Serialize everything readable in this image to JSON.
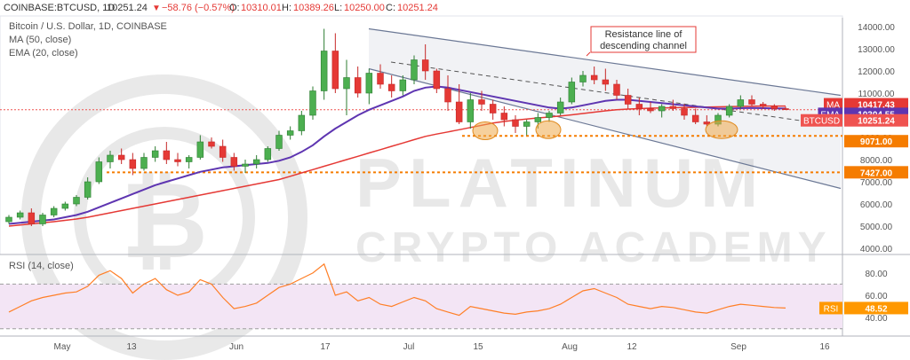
{
  "header": {
    "symbol": "COINBASE:BTCUSD, 1D",
    "last": "10251.24",
    "change": "−58.76 (−0.57%)",
    "o_label": "O:",
    "o_value": "10310.01",
    "h_label": "H:",
    "h_value": "10389.26",
    "l_label": "L:",
    "l_value": "10250.00",
    "c_label": "C:",
    "c_value": "10251.24"
  },
  "legend": {
    "title": "Bitcoin / U.S. Dollar, 1D, COINBASE",
    "ma": "MA (50, close)",
    "ema": "EMA (20, close)"
  },
  "watermark": {
    "line1": "PLATINUM",
    "line2": "CRYPTO ACADEMY"
  },
  "annotation": {
    "line1": "Resistance line of",
    "line2": "descending channel"
  },
  "price_axis": {
    "ticks": [
      "4000.00",
      "5000.00",
      "6000.00",
      "7000.00",
      "8000.00",
      "9000.00",
      "10000.00",
      "11000.00",
      "12000.00",
      "13000.00",
      "14000.00"
    ],
    "badges": [
      {
        "name": "ma-badge",
        "label": "MA",
        "value": "10417.43",
        "color": "#e53935"
      },
      {
        "name": "ema-badge",
        "label": "EMA",
        "value": "10304.55",
        "color": "#5e35b1"
      },
      {
        "name": "btcusd-badge",
        "label": "BTCUSD",
        "value": "10251.24",
        "color": "#ef5350"
      },
      {
        "name": "level-9071-badge",
        "label": "",
        "value": "9071.00",
        "color": "#f57c00"
      },
      {
        "name": "level-7427-badge",
        "label": "",
        "value": "7427.00",
        "color": "#f57c00"
      }
    ]
  },
  "rsi": {
    "title": "RSI (14, close)",
    "ticks": [
      "40.00",
      "60.00",
      "80.00"
    ],
    "badge_label": "RSI",
    "badge_value": "48.52",
    "line_color": "#ff7f27",
    "band_color": "#f3e5f5"
  },
  "time_axis": {
    "labels": [
      "May",
      "13",
      "Jun",
      "17",
      "Jul",
      "15",
      "Aug",
      "12",
      "Sep",
      "16"
    ]
  },
  "chart_data": {
    "type": "candlestick",
    "title": "Bitcoin / U.S. Dollar, 1D, COINBASE",
    "ylim": [
      3800,
      14400
    ],
    "rsi_ylim": [
      25,
      95
    ],
    "horizontal_levels": [
      9071,
      7427
    ],
    "last_price": 10251.24,
    "ma50_last": 10417.43,
    "ema20_last": 10304.55,
    "rsi_last": 48.52,
    "resistance_line": {
      "start": 13900,
      "end": 10900
    },
    "support_line": {
      "start": 12100,
      "end": 6700
    },
    "dashed_trendline": {
      "start": 12400,
      "end": 9500
    },
    "candles": [
      {
        "o": 5200,
        "h": 5500,
        "l": 5100,
        "c": 5400
      },
      {
        "o": 5400,
        "h": 5700,
        "l": 5300,
        "c": 5600
      },
      {
        "o": 5600,
        "h": 5800,
        "l": 5000,
        "c": 5100
      },
      {
        "o": 5100,
        "h": 5600,
        "l": 5000,
        "c": 5500
      },
      {
        "o": 5500,
        "h": 5900,
        "l": 5400,
        "c": 5800
      },
      {
        "o": 5800,
        "h": 6100,
        "l": 5700,
        "c": 6000
      },
      {
        "o": 6000,
        "h": 6400,
        "l": 5900,
        "c": 6300
      },
      {
        "o": 6300,
        "h": 7200,
        "l": 6200,
        "c": 7000
      },
      {
        "o": 7000,
        "h": 8100,
        "l": 6900,
        "c": 7900
      },
      {
        "o": 7900,
        "h": 8400,
        "l": 7600,
        "c": 8200
      },
      {
        "o": 8200,
        "h": 8500,
        "l": 7800,
        "c": 8000
      },
      {
        "o": 8000,
        "h": 8300,
        "l": 7300,
        "c": 7600
      },
      {
        "o": 7600,
        "h": 8300,
        "l": 7500,
        "c": 8100
      },
      {
        "o": 8100,
        "h": 8600,
        "l": 7900,
        "c": 8400
      },
      {
        "o": 8400,
        "h": 8800,
        "l": 7800,
        "c": 8000
      },
      {
        "o": 8000,
        "h": 8300,
        "l": 7700,
        "c": 7900
      },
      {
        "o": 7900,
        "h": 8200,
        "l": 7600,
        "c": 8100
      },
      {
        "o": 8100,
        "h": 9100,
        "l": 8000,
        "c": 8800
      },
      {
        "o": 8800,
        "h": 9000,
        "l": 8500,
        "c": 8600
      },
      {
        "o": 8600,
        "h": 8900,
        "l": 7900,
        "c": 8100
      },
      {
        "o": 8100,
        "h": 8300,
        "l": 7500,
        "c": 7700
      },
      {
        "o": 7700,
        "h": 8000,
        "l": 7400,
        "c": 7800
      },
      {
        "o": 7800,
        "h": 8200,
        "l": 7600,
        "c": 8000
      },
      {
        "o": 8000,
        "h": 8600,
        "l": 7900,
        "c": 8500
      },
      {
        "o": 8500,
        "h": 9300,
        "l": 8400,
        "c": 9100
      },
      {
        "o": 9100,
        "h": 9500,
        "l": 8900,
        "c": 9300
      },
      {
        "o": 9300,
        "h": 10200,
        "l": 9100,
        "c": 10000
      },
      {
        "o": 10000,
        "h": 11300,
        "l": 9800,
        "c": 11100
      },
      {
        "o": 11100,
        "h": 13900,
        "l": 10700,
        "c": 12900
      },
      {
        "o": 12900,
        "h": 13700,
        "l": 11000,
        "c": 11200
      },
      {
        "o": 11200,
        "h": 12500,
        "l": 10000,
        "c": 11700
      },
      {
        "o": 11700,
        "h": 12200,
        "l": 10800,
        "c": 11000
      },
      {
        "o": 11000,
        "h": 12100,
        "l": 10500,
        "c": 11900
      },
      {
        "o": 11900,
        "h": 12300,
        "l": 11200,
        "c": 11400
      },
      {
        "o": 11400,
        "h": 11800,
        "l": 10800,
        "c": 11100
      },
      {
        "o": 11100,
        "h": 11800,
        "l": 10900,
        "c": 11600
      },
      {
        "o": 11600,
        "h": 12700,
        "l": 11400,
        "c": 12500
      },
      {
        "o": 12500,
        "h": 13200,
        "l": 11600,
        "c": 12000
      },
      {
        "o": 12000,
        "h": 12100,
        "l": 11000,
        "c": 11200
      },
      {
        "o": 11200,
        "h": 11800,
        "l": 10200,
        "c": 10600
      },
      {
        "o": 10600,
        "h": 11400,
        "l": 9600,
        "c": 9700
      },
      {
        "o": 9700,
        "h": 11000,
        "l": 9400,
        "c": 10700
      },
      {
        "o": 10700,
        "h": 11100,
        "l": 10200,
        "c": 10500
      },
      {
        "o": 10500,
        "h": 10700,
        "l": 9800,
        "c": 10100
      },
      {
        "o": 10100,
        "h": 10400,
        "l": 9500,
        "c": 9800
      },
      {
        "o": 9800,
        "h": 10000,
        "l": 9200,
        "c": 9500
      },
      {
        "o": 9500,
        "h": 9800,
        "l": 9100,
        "c": 9700
      },
      {
        "o": 9700,
        "h": 10100,
        "l": 9400,
        "c": 9900
      },
      {
        "o": 9900,
        "h": 10200,
        "l": 9700,
        "c": 10100
      },
      {
        "o": 10100,
        "h": 10800,
        "l": 10000,
        "c": 10600
      },
      {
        "o": 10600,
        "h": 11700,
        "l": 10500,
        "c": 11500
      },
      {
        "o": 11500,
        "h": 12000,
        "l": 11300,
        "c": 11800
      },
      {
        "o": 11800,
        "h": 12200,
        "l": 11400,
        "c": 11600
      },
      {
        "o": 11600,
        "h": 12100,
        "l": 11100,
        "c": 11400
      },
      {
        "o": 11400,
        "h": 11600,
        "l": 10700,
        "c": 10900
      },
      {
        "o": 10900,
        "h": 11200,
        "l": 10300,
        "c": 10500
      },
      {
        "o": 10500,
        "h": 10800,
        "l": 10000,
        "c": 10300
      },
      {
        "o": 10300,
        "h": 10600,
        "l": 10100,
        "c": 10200
      },
      {
        "o": 10200,
        "h": 10500,
        "l": 9900,
        "c": 10400
      },
      {
        "o": 10400,
        "h": 10700,
        "l": 10200,
        "c": 10300
      },
      {
        "o": 10300,
        "h": 10500,
        "l": 9800,
        "c": 10000
      },
      {
        "o": 10000,
        "h": 10300,
        "l": 9600,
        "c": 9700
      },
      {
        "o": 9700,
        "h": 10000,
        "l": 9500,
        "c": 9600
      },
      {
        "o": 9600,
        "h": 10100,
        "l": 9500,
        "c": 10000
      },
      {
        "o": 10000,
        "h": 10500,
        "l": 9900,
        "c": 10400
      },
      {
        "o": 10400,
        "h": 10900,
        "l": 10300,
        "c": 10700
      },
      {
        "o": 10700,
        "h": 10900,
        "l": 10400,
        "c": 10500
      },
      {
        "o": 10500,
        "h": 10600,
        "l": 10300,
        "c": 10400
      },
      {
        "o": 10400,
        "h": 10500,
        "l": 10200,
        "c": 10300
      },
      {
        "o": 10300,
        "h": 10390,
        "l": 10250,
        "c": 10251
      }
    ],
    "ma50": [
      5000,
      5050,
      5100,
      5150,
      5200,
      5260,
      5320,
      5400,
      5500,
      5600,
      5700,
      5800,
      5900,
      6000,
      6100,
      6200,
      6300,
      6400,
      6500,
      6600,
      6700,
      6800,
      6900,
      7000,
      7100,
      7250,
      7400,
      7550,
      7700,
      7850,
      8000,
      8150,
      8300,
      8450,
      8600,
      8750,
      8900,
      9050,
      9150,
      9250,
      9350,
      9450,
      9550,
      9650,
      9720,
      9780,
      9830,
      9880,
      9920,
      9970,
      10020,
      10080,
      10140,
      10200,
      10250,
      10280,
      10300,
      10320,
      10330,
      10340,
      10350,
      10360,
      10370,
      10380,
      10390,
      10400,
      10410,
      10415,
      10416,
      10417
    ],
    "ema20": [
      5100,
      5150,
      5200,
      5250,
      5300,
      5400,
      5500,
      5650,
      5850,
      6050,
      6250,
      6450,
      6650,
      6850,
      7000,
      7150,
      7300,
      7450,
      7550,
      7650,
      7700,
      7750,
      7800,
      7850,
      7950,
      8100,
      8350,
      8650,
      9050,
      9400,
      9700,
      10000,
      10250,
      10450,
      10650,
      10850,
      11100,
      11250,
      11300,
      11250,
      11150,
      11050,
      10950,
      10850,
      10750,
      10650,
      10550,
      10450,
      10350,
      10300,
      10350,
      10450,
      10550,
      10650,
      10700,
      10700,
      10650,
      10600,
      10550,
      10500,
      10450,
      10400,
      10350,
      10300,
      10300,
      10320,
      10330,
      10320,
      10310,
      10305
    ],
    "rsi": [
      45,
      50,
      55,
      58,
      60,
      62,
      63,
      68,
      78,
      82,
      75,
      62,
      70,
      75,
      65,
      60,
      63,
      74,
      70,
      58,
      48,
      50,
      53,
      60,
      67,
      70,
      75,
      80,
      88,
      60,
      63,
      55,
      58,
      52,
      50,
      54,
      58,
      55,
      48,
      45,
      42,
      50,
      48,
      46,
      44,
      43,
      45,
      46,
      48,
      52,
      58,
      64,
      66,
      62,
      58,
      52,
      50,
      48,
      50,
      49,
      47,
      45,
      44,
      47,
      50,
      52,
      51,
      50,
      49,
      48.52
    ]
  }
}
